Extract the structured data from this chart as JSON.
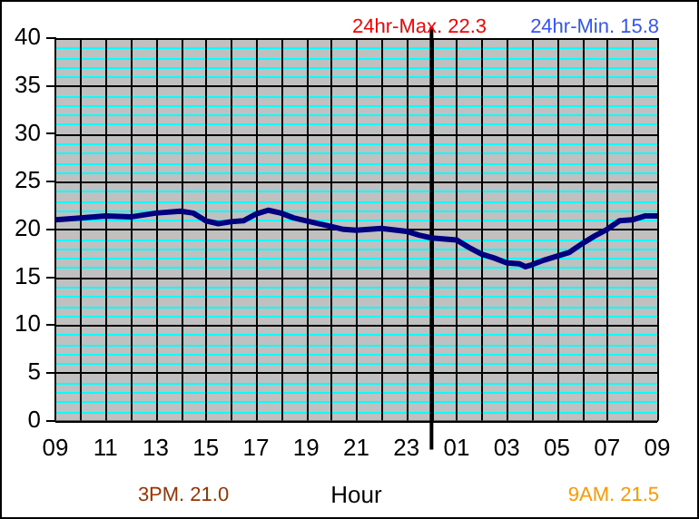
{
  "chart_data": {
    "type": "line",
    "xlabel": "Hour",
    "annotations": [
      "24hr-Max. 22.3",
      "24hr-Min. 15.8",
      "3PM. 21.0",
      "9AM. 21.5"
    ],
    "x": [
      "--01-01T09:00",
      "--01-01T10:00",
      "--01-01T11:00",
      "--01-01T12:00",
      "--01-01T13:00",
      "--01-01T14:00",
      "--01-01T14:30",
      "--01-01T15:00",
      "--01-01T15:30",
      "--01-01T16:00",
      "--01-01T16:30",
      "--01-01T17:00",
      "--01-01T17:30",
      "--01-01T18:00",
      "--01-01T18:30",
      "--01-01T19:00",
      "--01-01T20:00",
      "--01-01T20:30",
      "--01-01T21:00",
      "--01-01T22:00",
      "--01-01T23:00",
      "--01-01T23:30",
      "--01-02T00:00",
      "--01-02T01:00",
      "--01-02T01:30",
      "--01-02T02:00",
      "--01-02T02:30",
      "--01-02T03:00",
      "--01-02T03:30",
      "--01-02T03:45",
      "--01-02T04:00",
      "--01-02T04:30",
      "--01-02T05:00",
      "--01-02T05:30",
      "--01-02T06:00",
      "--01-02T06:30",
      "--01-02T07:00",
      "--01-02T07:30",
      "--01-02T08:00",
      "--01-02T08:30",
      "--01-02T09:00"
    ],
    "series": [
      {
        "color": "#000080",
        "values": [
          21.0,
          21.2,
          21.4,
          21.3,
          21.7,
          21.9,
          21.7,
          20.9,
          20.6,
          20.8,
          20.9,
          21.6,
          22.0,
          21.7,
          21.2,
          20.9,
          20.3,
          20.0,
          19.9,
          20.1,
          19.8,
          19.4,
          19.1,
          18.9,
          18.1,
          17.4,
          17.0,
          16.5,
          16.4,
          16.1,
          16.3,
          16.8,
          17.2,
          17.6,
          18.5,
          19.3,
          20.0,
          20.9,
          21.0,
          21.4,
          21.4
        ]
      }
    ],
    "xlim": [
      "--01-01T09:00",
      "--01-02T09:00"
    ],
    "xticks": [
      {
        "value": "--01-01T09:00",
        "label": "09"
      },
      {
        "value": "--01-01T10:00",
        "label": null
      },
      {
        "value": "--01-01T11:00",
        "label": "11"
      },
      {
        "value": "--01-01T12:00",
        "label": null
      },
      {
        "value": "--01-01T13:00",
        "label": "13"
      },
      {
        "value": "--01-01T14:00",
        "label": null
      },
      {
        "value": "--01-01T15:00",
        "label": "15"
      },
      {
        "value": "--01-01T16:00",
        "label": null
      },
      {
        "value": "--01-01T17:00",
        "label": "17"
      },
      {
        "value": "--01-01T18:00",
        "label": null
      },
      {
        "value": "--01-01T19:00",
        "label": "19"
      },
      {
        "value": "--01-01T20:00",
        "label": null
      },
      {
        "value": "--01-01T21:00",
        "label": "21"
      },
      {
        "value": "--01-01T22:00",
        "label": null
      },
      {
        "value": "--01-01T23:00",
        "label": "23"
      },
      {
        "value": "--01-02T00:00",
        "label": null
      },
      {
        "value": "--01-02T01:00",
        "label": "01"
      },
      {
        "value": "--01-02T02:00",
        "label": null
      },
      {
        "value": "--01-02T03:00",
        "label": "03"
      },
      {
        "value": "--01-02T04:00",
        "label": null
      },
      {
        "value": "--01-02T05:00",
        "label": "05"
      },
      {
        "value": "--01-02T06:00",
        "label": null
      },
      {
        "value": "--01-02T07:00",
        "label": "07"
      },
      {
        "value": "--01-02T08:00",
        "label": null
      },
      {
        "value": "--01-02T09:00",
        "label": "09"
      }
    ],
    "ylim": [
      0,
      40
    ],
    "yticks": [
      0,
      {
        "value": 1,
        "label": null
      },
      {
        "value": 2,
        "label": null
      },
      {
        "value": 3,
        "label": null
      },
      {
        "value": 4,
        "label": null
      },
      5,
      {
        "value": 6,
        "label": null
      },
      {
        "value": 7,
        "label": null
      },
      {
        "value": 8,
        "label": null
      },
      {
        "value": 9,
        "label": null
      },
      10,
      {
        "value": 11,
        "label": null
      },
      {
        "value": 12,
        "label": null
      },
      {
        "value": 13,
        "label": null
      },
      {
        "value": 14,
        "label": null
      },
      15,
      {
        "value": 16,
        "label": null
      },
      {
        "value": 17,
        "label": null
      },
      {
        "value": 18,
        "label": null
      },
      {
        "value": 19,
        "label": null
      },
      20,
      {
        "value": 21,
        "label": null
      },
      {
        "value": 22,
        "label": null
      },
      {
        "value": 23,
        "label": null
      },
      {
        "value": 24,
        "label": null
      },
      25,
      {
        "value": 26,
        "label": null
      },
      {
        "value": 27,
        "label": null
      },
      {
        "value": 28,
        "label": null
      },
      {
        "value": 29,
        "label": null
      },
      30,
      {
        "value": 31,
        "label": null
      },
      {
        "value": 32,
        "label": null
      },
      {
        "value": 33,
        "label": null
      },
      {
        "value": 34,
        "label": null
      },
      35,
      {
        "value": 36,
        "label": null
      },
      {
        "value": 37,
        "label": null
      },
      {
        "value": 38,
        "label": null
      },
      {
        "value": 39,
        "label": null
      },
      40
    ],
    "ref_lines": [
      {
        "axis": "x",
        "value": "--01-02T00:00",
        "color": "#000000"
      }
    ],
    "grid": true,
    "legend": false,
    "marker": "none",
    "line_style": "solid"
  }
}
